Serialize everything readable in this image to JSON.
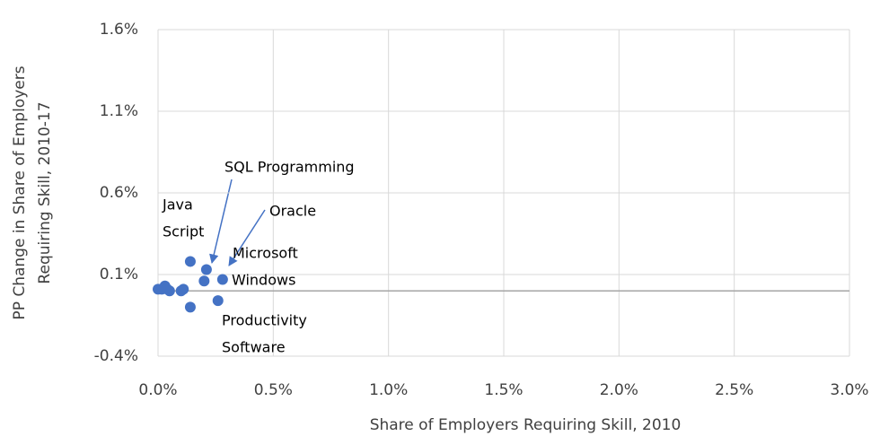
{
  "chart_data": {
    "type": "scatter",
    "x_label": "Share of Employers Requiring Skill, 2010",
    "y_label": [
      "PP Change in Share of Employers",
      "Requiring Skill, 2010-17"
    ],
    "x": [
      0,
      0.016,
      0.03,
      0.04,
      0.05,
      0.1,
      0.11,
      0.14,
      0.21,
      0.2,
      0.28,
      0.26,
      0.14
    ],
    "y": [
      0.01,
      0.01,
      0.03,
      0.01,
      0.0,
      0.0,
      0.01,
      0.18,
      0.13,
      0.06,
      0.07,
      -0.06,
      -0.1
    ],
    "color": "#4472c4",
    "xlim": [
      0,
      3.0
    ],
    "xticks": [
      {
        "value": 0,
        "label": "0.0%"
      },
      {
        "value": 0.5,
        "label": "0.5%"
      },
      {
        "value": 1.0,
        "label": "1.0%"
      },
      {
        "value": 1.5,
        "label": "1.5%"
      },
      {
        "value": 2.0,
        "label": "2.0%"
      },
      {
        "value": 2.5,
        "label": "2.5%"
      },
      {
        "value": 3.0,
        "label": "3.0%"
      }
    ],
    "ylim": [
      -0.4,
      1.6
    ],
    "yticks": [
      {
        "value": -0.4,
        "label": "-0.4%"
      },
      {
        "value": 0.1,
        "label": "0.1%"
      },
      {
        "value": 0.6,
        "label": "0.6%"
      },
      {
        "value": 1.1,
        "label": "1.1%"
      },
      {
        "value": 1.6,
        "label": "1.6%"
      }
    ],
    "grid": true,
    "annotations": [
      [
        "SQL Programming"
      ],
      [
        "Java",
        "Script"
      ],
      [
        "Oracle"
      ],
      [
        "Microsoft",
        "Windows"
      ],
      [
        "Productivity",
        "Software"
      ]
    ]
  }
}
